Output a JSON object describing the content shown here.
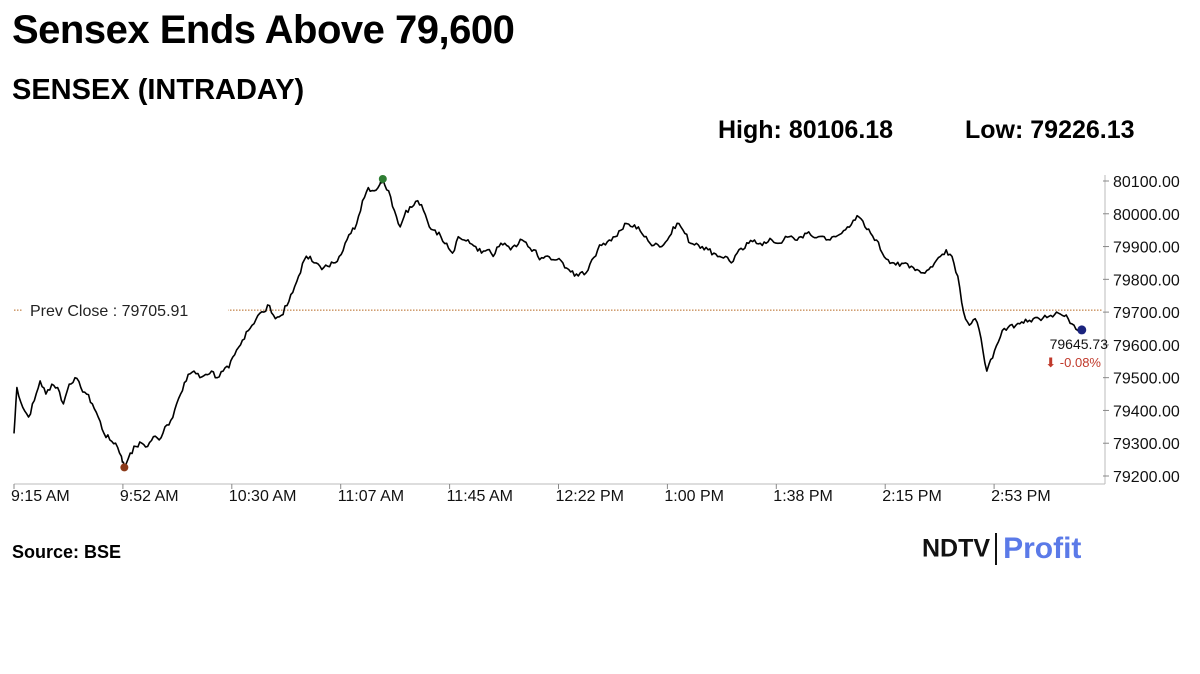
{
  "headline": "Sensex Ends Above 79,600",
  "chart_title": "SENSEX (INTRADAY)",
  "stats": {
    "high": "High: 80106.18",
    "low": "Low: 79226.13"
  },
  "source": "Source: BSE",
  "branding": {
    "brand": "NDTV",
    "product": "Profit",
    "product_color": "#5b7ae8"
  },
  "colors": {
    "line": "#000000",
    "prev_close_line": "#b5651d",
    "high_marker": "#2e7d32",
    "low_marker": "#8b3a1a",
    "last_marker": "#1a237e",
    "down": "#c0392b"
  },
  "chart_data": {
    "type": "line",
    "title": "SENSEX (INTRADAY)",
    "xlabel": "",
    "ylabel": "",
    "ylim": [
      79200,
      80150
    ],
    "y_ticks": [
      "79200.00",
      "79300.00",
      "79400.00",
      "79500.00",
      "79600.00",
      "79700.00",
      "79800.00",
      "79900.00",
      "80000.00",
      "80100.00"
    ],
    "x_ticks": [
      "9:15 AM",
      "9:52 AM",
      "10:30 AM",
      "11:07 AM",
      "11:45 AM",
      "12:22 PM",
      "1:00 PM",
      "1:38 PM",
      "2:15 PM",
      "2:53 PM"
    ],
    "x_range_minutes": [
      0,
      375
    ],
    "grid": false,
    "prev_close": {
      "label": "Prev Close : 79705.91",
      "value": 79705.91
    },
    "high": {
      "time_min": 127,
      "value": 80106.18
    },
    "low": {
      "time_min": 38,
      "value": 79226.13
    },
    "last": {
      "label": "79645.73",
      "change": "⬇ -0.08%",
      "value": 79645.73
    },
    "series": [
      {
        "points": [
          [
            0,
            79330
          ],
          [
            1,
            79470
          ],
          [
            3,
            79410
          ],
          [
            5,
            79380
          ],
          [
            7,
            79430
          ],
          [
            9,
            79490
          ],
          [
            11,
            79450
          ],
          [
            13,
            79480
          ],
          [
            15,
            79470
          ],
          [
            17,
            79420
          ],
          [
            19,
            79480
          ],
          [
            21,
            79500
          ],
          [
            23,
            79470
          ],
          [
            25,
            79450
          ],
          [
            27,
            79420
          ],
          [
            29,
            79380
          ],
          [
            31,
            79330
          ],
          [
            33,
            79310
          ],
          [
            35,
            79300
          ],
          [
            37,
            79260
          ],
          [
            38,
            79226
          ],
          [
            40,
            79270
          ],
          [
            42,
            79290
          ],
          [
            44,
            79300
          ],
          [
            46,
            79290
          ],
          [
            48,
            79320
          ],
          [
            50,
            79310
          ],
          [
            52,
            79350
          ],
          [
            54,
            79370
          ],
          [
            56,
            79420
          ],
          [
            58,
            79460
          ],
          [
            60,
            79510
          ],
          [
            62,
            79520
          ],
          [
            64,
            79500
          ],
          [
            66,
            79510
          ],
          [
            68,
            79520
          ],
          [
            70,
            79500
          ],
          [
            72,
            79520
          ],
          [
            74,
            79530
          ],
          [
            76,
            79570
          ],
          [
            78,
            79600
          ],
          [
            80,
            79640
          ],
          [
            82,
            79660
          ],
          [
            84,
            79690
          ],
          [
            86,
            79700
          ],
          [
            88,
            79720
          ],
          [
            90,
            79680
          ],
          [
            92,
            79690
          ],
          [
            94,
            79720
          ],
          [
            96,
            79760
          ],
          [
            98,
            79810
          ],
          [
            100,
            79860
          ],
          [
            102,
            79870
          ],
          [
            104,
            79850
          ],
          [
            106,
            79830
          ],
          [
            108,
            79840
          ],
          [
            110,
            79850
          ],
          [
            112,
            79870
          ],
          [
            114,
            79910
          ],
          [
            116,
            79940
          ],
          [
            118,
            79970
          ],
          [
            120,
            80040
          ],
          [
            122,
            80080
          ],
          [
            124,
            80070
          ],
          [
            126,
            80090
          ],
          [
            127,
            80106
          ],
          [
            129,
            80070
          ],
          [
            131,
            80010
          ],
          [
            133,
            79960
          ],
          [
            135,
            80010
          ],
          [
            137,
            80020
          ],
          [
            139,
            80040
          ],
          [
            141,
            80010
          ],
          [
            143,
            79960
          ],
          [
            145,
            79950
          ],
          [
            147,
            79930
          ],
          [
            149,
            79910
          ],
          [
            151,
            79880
          ],
          [
            153,
            79930
          ],
          [
            155,
            79920
          ],
          [
            157,
            79910
          ],
          [
            159,
            79900
          ],
          [
            161,
            79880
          ],
          [
            163,
            79890
          ],
          [
            165,
            79870
          ],
          [
            167,
            79900
          ],
          [
            169,
            79910
          ],
          [
            171,
            79890
          ],
          [
            173,
            79900
          ],
          [
            175,
            79920
          ],
          [
            177,
            79900
          ],
          [
            179,
            79890
          ],
          [
            181,
            79860
          ],
          [
            183,
            79870
          ],
          [
            185,
            79860
          ],
          [
            187,
            79860
          ],
          [
            189,
            79850
          ],
          [
            191,
            79830
          ],
          [
            193,
            79810
          ],
          [
            195,
            79820
          ],
          [
            197,
            79820
          ],
          [
            199,
            79860
          ],
          [
            201,
            79890
          ],
          [
            203,
            79910
          ],
          [
            205,
            79920
          ],
          [
            207,
            79930
          ],
          [
            209,
            79950
          ],
          [
            211,
            79970
          ],
          [
            213,
            79960
          ],
          [
            215,
            79960
          ],
          [
            217,
            79930
          ],
          [
            219,
            79910
          ],
          [
            221,
            79910
          ],
          [
            223,
            79900
          ],
          [
            225,
            79920
          ],
          [
            227,
            79960
          ],
          [
            229,
            79970
          ],
          [
            231,
            79940
          ],
          [
            233,
            79910
          ],
          [
            235,
            79910
          ],
          [
            237,
            79900
          ],
          [
            239,
            79890
          ],
          [
            241,
            79880
          ],
          [
            243,
            79870
          ],
          [
            245,
            79870
          ],
          [
            247,
            79850
          ],
          [
            249,
            79880
          ],
          [
            251,
            79890
          ],
          [
            253,
            79910
          ],
          [
            255,
            79920
          ],
          [
            257,
            79910
          ],
          [
            259,
            79910
          ],
          [
            261,
            79920
          ],
          [
            263,
            79910
          ],
          [
            265,
            79920
          ],
          [
            267,
            79930
          ],
          [
            269,
            79920
          ],
          [
            271,
            79930
          ],
          [
            273,
            79940
          ],
          [
            275,
            79930
          ],
          [
            277,
            79930
          ],
          [
            279,
            79930
          ],
          [
            281,
            79920
          ],
          [
            283,
            79930
          ],
          [
            285,
            79940
          ],
          [
            287,
            79960
          ],
          [
            289,
            79980
          ],
          [
            291,
            79990
          ],
          [
            293,
            79960
          ],
          [
            295,
            79940
          ],
          [
            297,
            79920
          ],
          [
            299,
            79880
          ],
          [
            301,
            79860
          ],
          [
            303,
            79850
          ],
          [
            305,
            79840
          ],
          [
            307,
            79850
          ],
          [
            309,
            79840
          ],
          [
            311,
            79830
          ],
          [
            313,
            79820
          ],
          [
            315,
            79830
          ],
          [
            317,
            79850
          ],
          [
            319,
            79870
          ],
          [
            321,
            79890
          ],
          [
            323,
            79870
          ],
          [
            325,
            79810
          ],
          [
            327,
            79700
          ],
          [
            329,
            79660
          ],
          [
            331,
            79680
          ],
          [
            333,
            79620
          ],
          [
            335,
            79520
          ],
          [
            337,
            79560
          ],
          [
            339,
            79610
          ],
          [
            341,
            79650
          ],
          [
            343,
            79660
          ],
          [
            345,
            79660
          ],
          [
            347,
            79670
          ],
          [
            349,
            79670
          ],
          [
            351,
            79680
          ],
          [
            353,
            79680
          ],
          [
            355,
            79690
          ],
          [
            357,
            79690
          ],
          [
            359,
            79700
          ],
          [
            361,
            79690
          ],
          [
            363,
            79680
          ],
          [
            365,
            79660
          ],
          [
            367,
            79646
          ]
        ]
      }
    ]
  }
}
